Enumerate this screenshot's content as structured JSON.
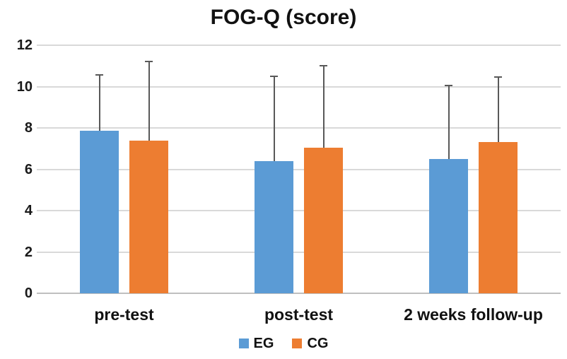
{
  "chart_data": {
    "type": "bar",
    "title": "FOG-Q (score)",
    "categories": [
      "pre-test",
      "post-test",
      "2 weeks follow-up"
    ],
    "series": [
      {
        "name": "EG",
        "color": "#5B9BD5",
        "values": [
          7.85,
          6.4,
          6.5
        ],
        "error_plus": [
          2.7,
          4.1,
          3.55
        ]
      },
      {
        "name": "CG",
        "color": "#ED7D31",
        "values": [
          7.4,
          7.05,
          7.3
        ],
        "error_plus": [
          3.8,
          3.95,
          3.15
        ]
      }
    ],
    "ylabel": "",
    "xlabel": "",
    "ylim": [
      0,
      12
    ],
    "yticks": [
      0,
      2,
      4,
      6,
      8,
      10,
      12
    ],
    "grid": true,
    "legend_position": "bottom",
    "colors": {
      "gridline": "#D9D9D9",
      "axis_line": "#BFBFBF",
      "error_bar": "#595959",
      "text": "#111111",
      "background": "#FFFFFF"
    }
  }
}
